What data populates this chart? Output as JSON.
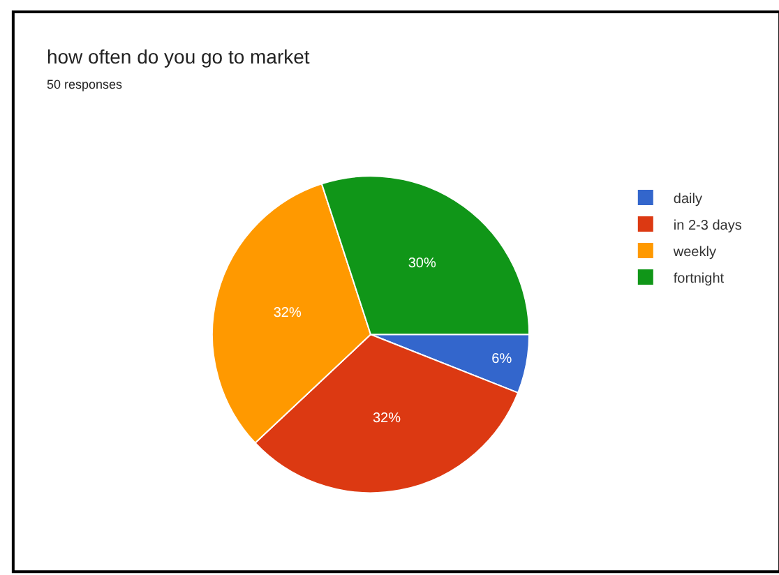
{
  "chart_data": {
    "type": "pie",
    "title": "how often do you go to market",
    "subtitle": "50 responses",
    "categories": [
      "daily",
      "in 2-3 days",
      "weekly",
      "fortnight"
    ],
    "values": [
      6,
      32,
      32,
      30
    ],
    "colors": [
      "#3366cc",
      "#dc3912",
      "#ff9900",
      "#109618"
    ],
    "value_labels": [
      "6%",
      "32%",
      "32%",
      "30%"
    ],
    "legend": "right"
  }
}
